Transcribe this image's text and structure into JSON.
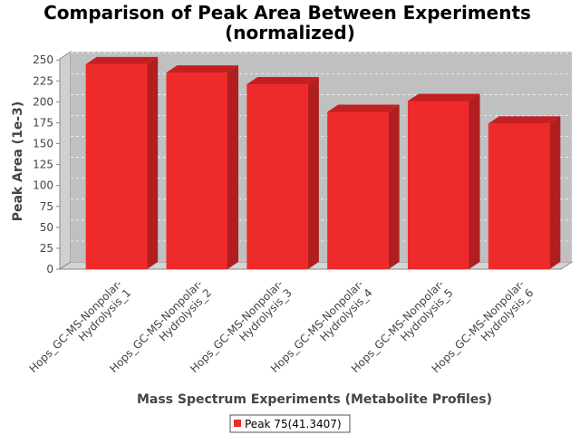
{
  "chart_data": {
    "type": "bar",
    "title_line1": "Comparison of Peak Area Between Experiments",
    "title_line2": "(normalized)",
    "xlabel": "Mass Spectrum Experiments (Metabolite Profiles)",
    "ylabel": "Peak Area (1e-3)",
    "ylim": [
      0,
      260
    ],
    "yticks": [
      0,
      25,
      50,
      75,
      100,
      125,
      150,
      175,
      200,
      225,
      250
    ],
    "grid": true,
    "legend_position": "bottom",
    "categories": [
      [
        "Hops_GC-MS-Nonpolar-",
        "Hydrolysis_1"
      ],
      [
        "Hops_GC-MS-Nonpolar-",
        "Hydrolysis_2"
      ],
      [
        "Hops_GC-MS-Nonpolar-",
        "Hydrolysis_3"
      ],
      [
        "Hops_GC-MS-Nonpolar-",
        "Hydrolysis_4"
      ],
      [
        "Hops_GC-MS-Nonpolar-",
        "Hydrolysis_5"
      ],
      [
        "Hops_GC-MS-Nonpolar-",
        "Hydrolysis_6"
      ]
    ],
    "series": [
      {
        "name": "Peak 75(41.3407)",
        "color": "#ee2a2a",
        "values": [
          245,
          235,
          221,
          188,
          201,
          174
        ]
      }
    ]
  }
}
